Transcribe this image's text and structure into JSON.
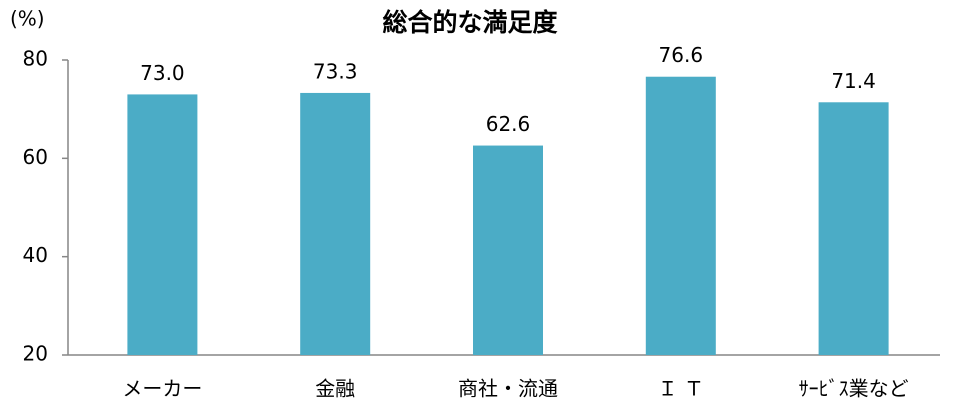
{
  "chart_data": {
    "type": "bar",
    "title": "総合的な満足度",
    "y_label": "(%)",
    "categories": [
      "メーカー",
      "金融",
      "商社・流通",
      "Ｉ Ｔ",
      "ｻｰﾋﾞｽ業など"
    ],
    "values": [
      73.0,
      73.3,
      62.6,
      76.6,
      71.4
    ],
    "value_labels": [
      "73.0",
      "73.3",
      "62.6",
      "76.6",
      "71.4"
    ],
    "color": "#4bacc6",
    "ylim": [
      20,
      80
    ],
    "yticks": [
      20,
      40,
      60,
      80
    ],
    "grid": false
  }
}
